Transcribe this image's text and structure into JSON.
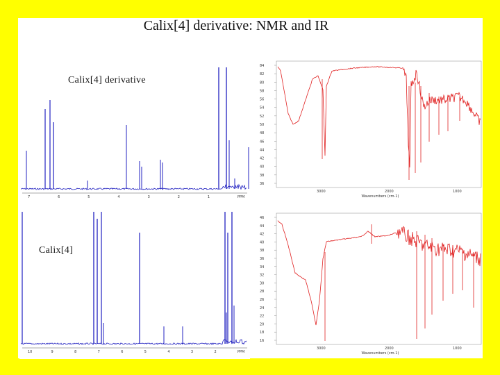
{
  "slide": {
    "title": "Calix[4] derivative: NMR and IR",
    "colors": {
      "background": "#FFFF00",
      "nmr": "#2020C0",
      "ir": "#E02020"
    }
  },
  "nmr_top": {
    "label": "Calix[4] derivative",
    "ticks": [
      "7",
      "6",
      "5",
      "4",
      "3",
      "2",
      "1",
      "PPM"
    ]
  },
  "nmr_bottom": {
    "label": "Calix[4]",
    "ticks": [
      "10",
      "9",
      "8",
      "7",
      "6",
      "5",
      "4",
      "3",
      "2",
      "PPM"
    ]
  },
  "ir_top": {
    "xlabel": "Wavenumbers (cm-1)",
    "xticks": [
      "3000",
      "2000",
      "1000"
    ],
    "yticks": [
      "84",
      "82",
      "80",
      "58",
      "56",
      "54",
      "52",
      "50",
      "48",
      "46",
      "44",
      "42",
      "40",
      "38",
      "36"
    ]
  },
  "ir_bottom": {
    "xlabel": "Wavenumbers (cm-1)",
    "xticks": [
      "3000",
      "2000",
      "1000"
    ],
    "yticks": [
      "46",
      "44",
      "42",
      "40",
      "38",
      "36",
      "34",
      "32",
      "30",
      "28",
      "26",
      "24",
      "22",
      "20",
      "18",
      "16"
    ]
  }
}
